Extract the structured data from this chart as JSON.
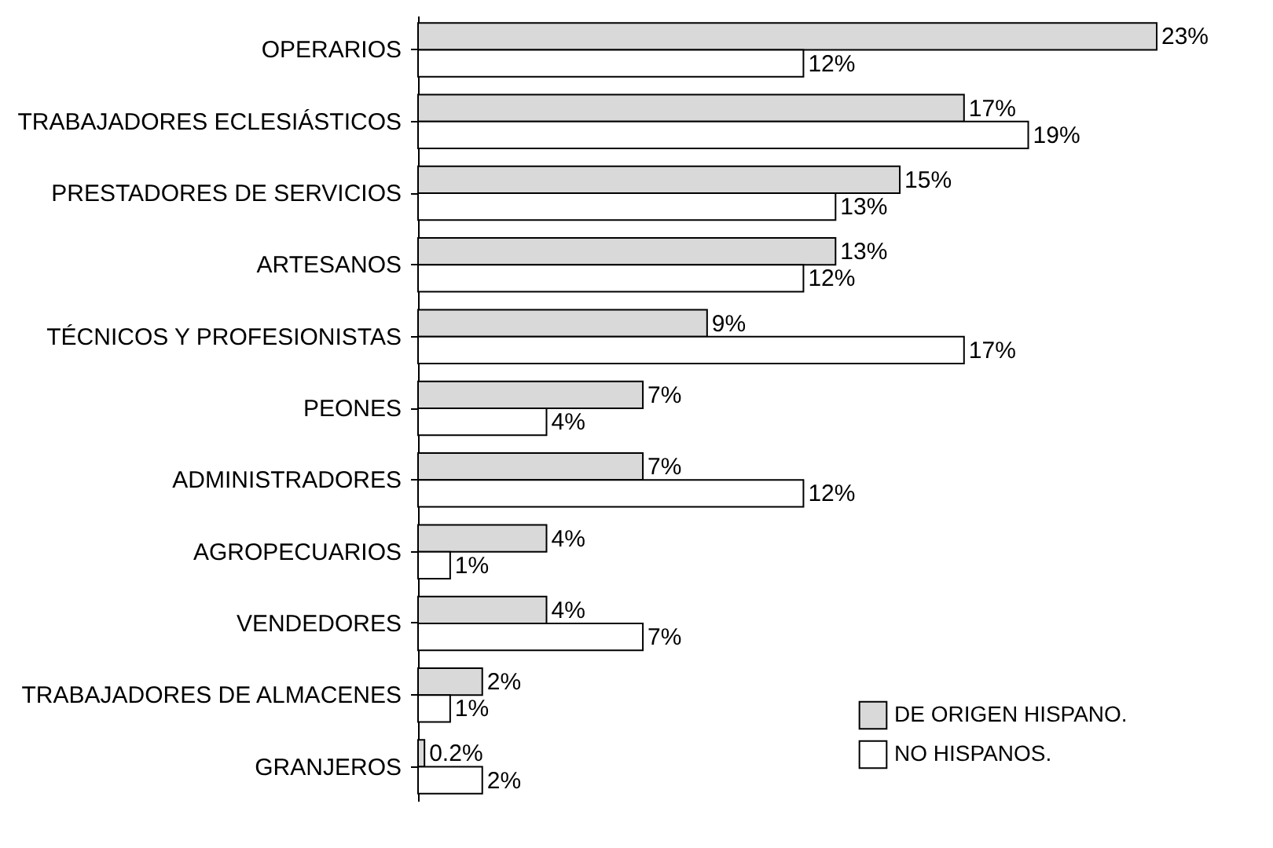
{
  "chart_data": {
    "type": "bar",
    "orientation": "horizontal",
    "categories": [
      "OPERARIOS",
      "TRABAJADORES ECLESIÁSTICOS",
      "PRESTADORES DE SERVICIOS",
      "ARTESANOS",
      "TÉCNICOS Y PROFESIONISTAS",
      "PEONES",
      "ADMINISTRADORES",
      "AGROPECUARIOS",
      "VENDEDORES",
      "TRABAJADORES DE ALMACENES",
      "GRANJEROS"
    ],
    "series": [
      {
        "name": "DE ORIGEN HISPANO.",
        "color": "#d9d9d9",
        "values": [
          23,
          17,
          15,
          13,
          9,
          7,
          7,
          4,
          4,
          2,
          0.2
        ],
        "value_labels": [
          "23%",
          "17%",
          "15%",
          "13%",
          "9%",
          "7%",
          "7%",
          "4%",
          "4%",
          "2%",
          "0.2%"
        ]
      },
      {
        "name": "NO HISPANOS.",
        "color": "#ffffff",
        "values": [
          12,
          19,
          13,
          12,
          17,
          4,
          12,
          1,
          7,
          1,
          2
        ],
        "value_labels": [
          "12%",
          "19%",
          "13%",
          "12%",
          "17%",
          "4%",
          "12%",
          "1%",
          "7%",
          "1%",
          "2%"
        ]
      }
    ],
    "legend": "bottom right"
  }
}
